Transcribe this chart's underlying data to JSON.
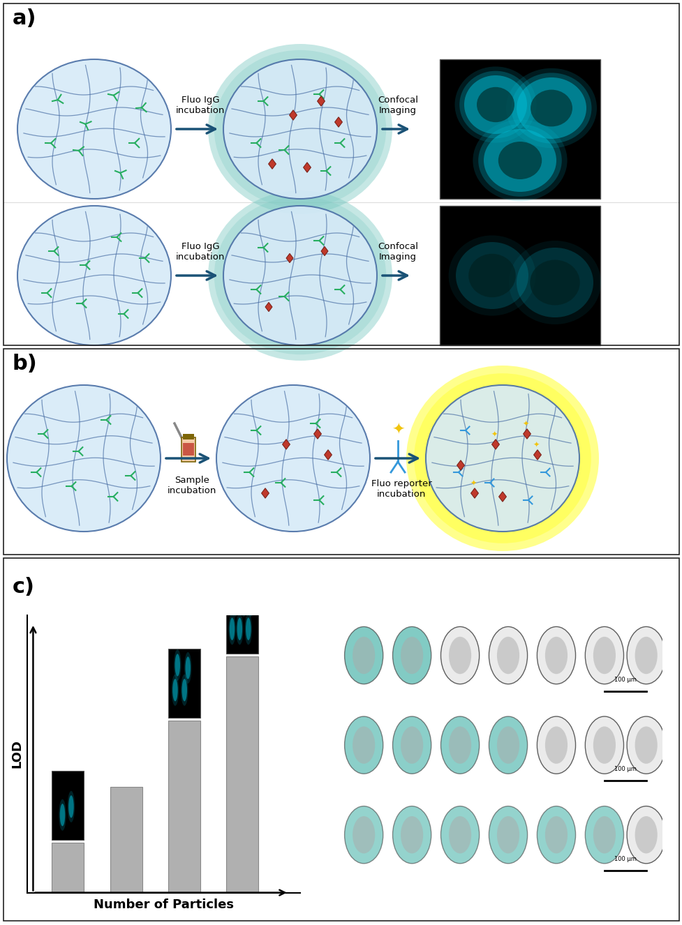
{
  "panel_a_label": "a)",
  "panel_b_label": "b)",
  "panel_c_label": "c)",
  "bg_color": "#ffffff",
  "panel_bg": "#ffffff",
  "border_color": "#000000",
  "hydrogel_fill": "#d6eaf8",
  "hydrogel_stroke": "#5d6d7e",
  "glow_teal": "#80cbc4",
  "glow_yellow": "#ffff80",
  "arrow_color": "#1a5276",
  "text_arrow1a": "Fluo IgG\nincubation",
  "text_arrow2a": "Confocal\nImaging",
  "text_arrow1b": "Sample\nincubation",
  "text_arrow2b": "Fluo reporter\nincubation",
  "bar_values": [
    0.18,
    0.38,
    0.62,
    0.85
  ],
  "bar_color": "#b0b0b0",
  "xlabel": "Number of Particles",
  "ylabel": "LOD",
  "panel_c_image_colors": [
    "#00bcd4",
    "#000000"
  ],
  "scale_bar_text": "100 μm",
  "outline_color": "#333333"
}
